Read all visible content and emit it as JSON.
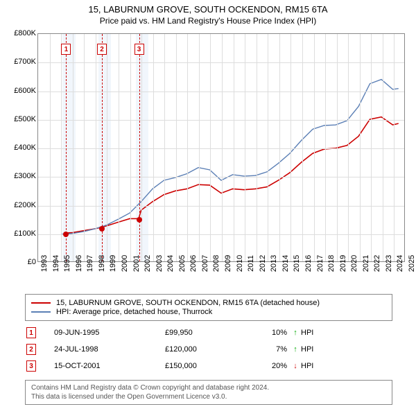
{
  "title1": "15, LABURNUM GROVE, SOUTH OCKENDON, RM15 6TA",
  "title2": "Price paid vs. HM Land Registry's House Price Index (HPI)",
  "chart": {
    "type": "line",
    "background_color": "#ffffff",
    "grid_color": "#dddddd",
    "border_color": "#888888",
    "x": {
      "min": 1993,
      "max": 2025,
      "ticks": [
        1993,
        1994,
        1995,
        1996,
        1997,
        1998,
        1999,
        2000,
        2001,
        2002,
        2003,
        2004,
        2005,
        2006,
        2007,
        2008,
        2009,
        2010,
        2011,
        2012,
        2013,
        2014,
        2015,
        2016,
        2017,
        2018,
        2019,
        2020,
        2021,
        2022,
        2023,
        2024,
        2025
      ],
      "label_fontsize": 11,
      "label_rotation": -90
    },
    "y": {
      "min": 0,
      "max": 800000,
      "ticks": [
        0,
        100000,
        200000,
        300000,
        400000,
        500000,
        600000,
        700000,
        800000
      ],
      "tick_labels": [
        "£0",
        "£100K",
        "£200K",
        "£300K",
        "£400K",
        "£500K",
        "£600K",
        "£700K",
        "£800K"
      ],
      "label_fontsize": 11
    },
    "sale_band_color": "rgba(200,220,245,0.25)",
    "sale_line_color": "#cc0000",
    "series": [
      {
        "id": "property",
        "label": "15, LABURNUM GROVE, SOUTH OCKENDON, RM15 6TA (detached house)",
        "color": "#cc0000",
        "line_width": 1.6,
        "data": [
          [
            1995.44,
            99950
          ],
          [
            1996.0,
            101000
          ],
          [
            1997.0,
            108000
          ],
          [
            1998.0,
            115000
          ],
          [
            1998.56,
            120000
          ],
          [
            1999.0,
            125000
          ],
          [
            2000.0,
            138000
          ],
          [
            2001.0,
            150000
          ],
          [
            2001.79,
            150000
          ],
          [
            2002.0,
            180000
          ],
          [
            2003.0,
            210000
          ],
          [
            2004.0,
            235000
          ],
          [
            2005.0,
            248000
          ],
          [
            2006.0,
            255000
          ],
          [
            2007.0,
            270000
          ],
          [
            2008.0,
            268000
          ],
          [
            2009.0,
            240000
          ],
          [
            2010.0,
            255000
          ],
          [
            2011.0,
            252000
          ],
          [
            2012.0,
            255000
          ],
          [
            2013.0,
            262000
          ],
          [
            2014.0,
            285000
          ],
          [
            2015.0,
            312000
          ],
          [
            2016.0,
            348000
          ],
          [
            2017.0,
            380000
          ],
          [
            2018.0,
            395000
          ],
          [
            2019.0,
            398000
          ],
          [
            2020.0,
            408000
          ],
          [
            2021.0,
            440000
          ],
          [
            2022.0,
            500000
          ],
          [
            2023.0,
            508000
          ],
          [
            2024.0,
            480000
          ],
          [
            2024.5,
            485000
          ]
        ]
      },
      {
        "id": "hpi",
        "label": "HPI: Average price, detached house, Thurrock",
        "color": "#5b7fb5",
        "line_width": 1.4,
        "data": [
          [
            1995.0,
            95000
          ],
          [
            1996.0,
            98000
          ],
          [
            1997.0,
            105000
          ],
          [
            1998.0,
            115000
          ],
          [
            1999.0,
            128000
          ],
          [
            2000.0,
            148000
          ],
          [
            2001.0,
            170000
          ],
          [
            2002.0,
            210000
          ],
          [
            2003.0,
            255000
          ],
          [
            2004.0,
            285000
          ],
          [
            2005.0,
            295000
          ],
          [
            2006.0,
            308000
          ],
          [
            2007.0,
            330000
          ],
          [
            2008.0,
            322000
          ],
          [
            2009.0,
            285000
          ],
          [
            2010.0,
            305000
          ],
          [
            2011.0,
            300000
          ],
          [
            2012.0,
            302000
          ],
          [
            2013.0,
            315000
          ],
          [
            2014.0,
            345000
          ],
          [
            2015.0,
            380000
          ],
          [
            2016.0,
            425000
          ],
          [
            2017.0,
            465000
          ],
          [
            2018.0,
            478000
          ],
          [
            2019.0,
            480000
          ],
          [
            2020.0,
            495000
          ],
          [
            2021.0,
            545000
          ],
          [
            2022.0,
            625000
          ],
          [
            2023.0,
            640000
          ],
          [
            2024.0,
            605000
          ],
          [
            2024.5,
            608000
          ]
        ]
      }
    ],
    "sales": [
      {
        "n": "1",
        "year": 1995.44,
        "price": 99950
      },
      {
        "n": "2",
        "year": 1998.56,
        "price": 120000
      },
      {
        "n": "3",
        "year": 2001.79,
        "price": 150000
      }
    ]
  },
  "legend": {
    "border_color": "#888888",
    "fontsize": 11,
    "items": [
      {
        "color": "#cc0000",
        "label": "15, LABURNUM GROVE, SOUTH OCKENDON, RM15 6TA (detached house)"
      },
      {
        "color": "#5b7fb5",
        "label": "HPI: Average price, detached house, Thurrock"
      }
    ]
  },
  "sales_table": {
    "hpi_label": "HPI",
    "rows": [
      {
        "n": "1",
        "date": "09-JUN-1995",
        "price": "£99,950",
        "pct": "10%",
        "dir": "up"
      },
      {
        "n": "2",
        "date": "24-JUL-1998",
        "price": "£120,000",
        "pct": "7%",
        "dir": "up"
      },
      {
        "n": "3",
        "date": "15-OCT-2001",
        "price": "£150,000",
        "pct": "20%",
        "dir": "down"
      }
    ]
  },
  "footer": {
    "line1": "Contains HM Land Registry data © Crown copyright and database right 2024.",
    "line2": "This data is licensed under the Open Government Licence v3.0."
  }
}
